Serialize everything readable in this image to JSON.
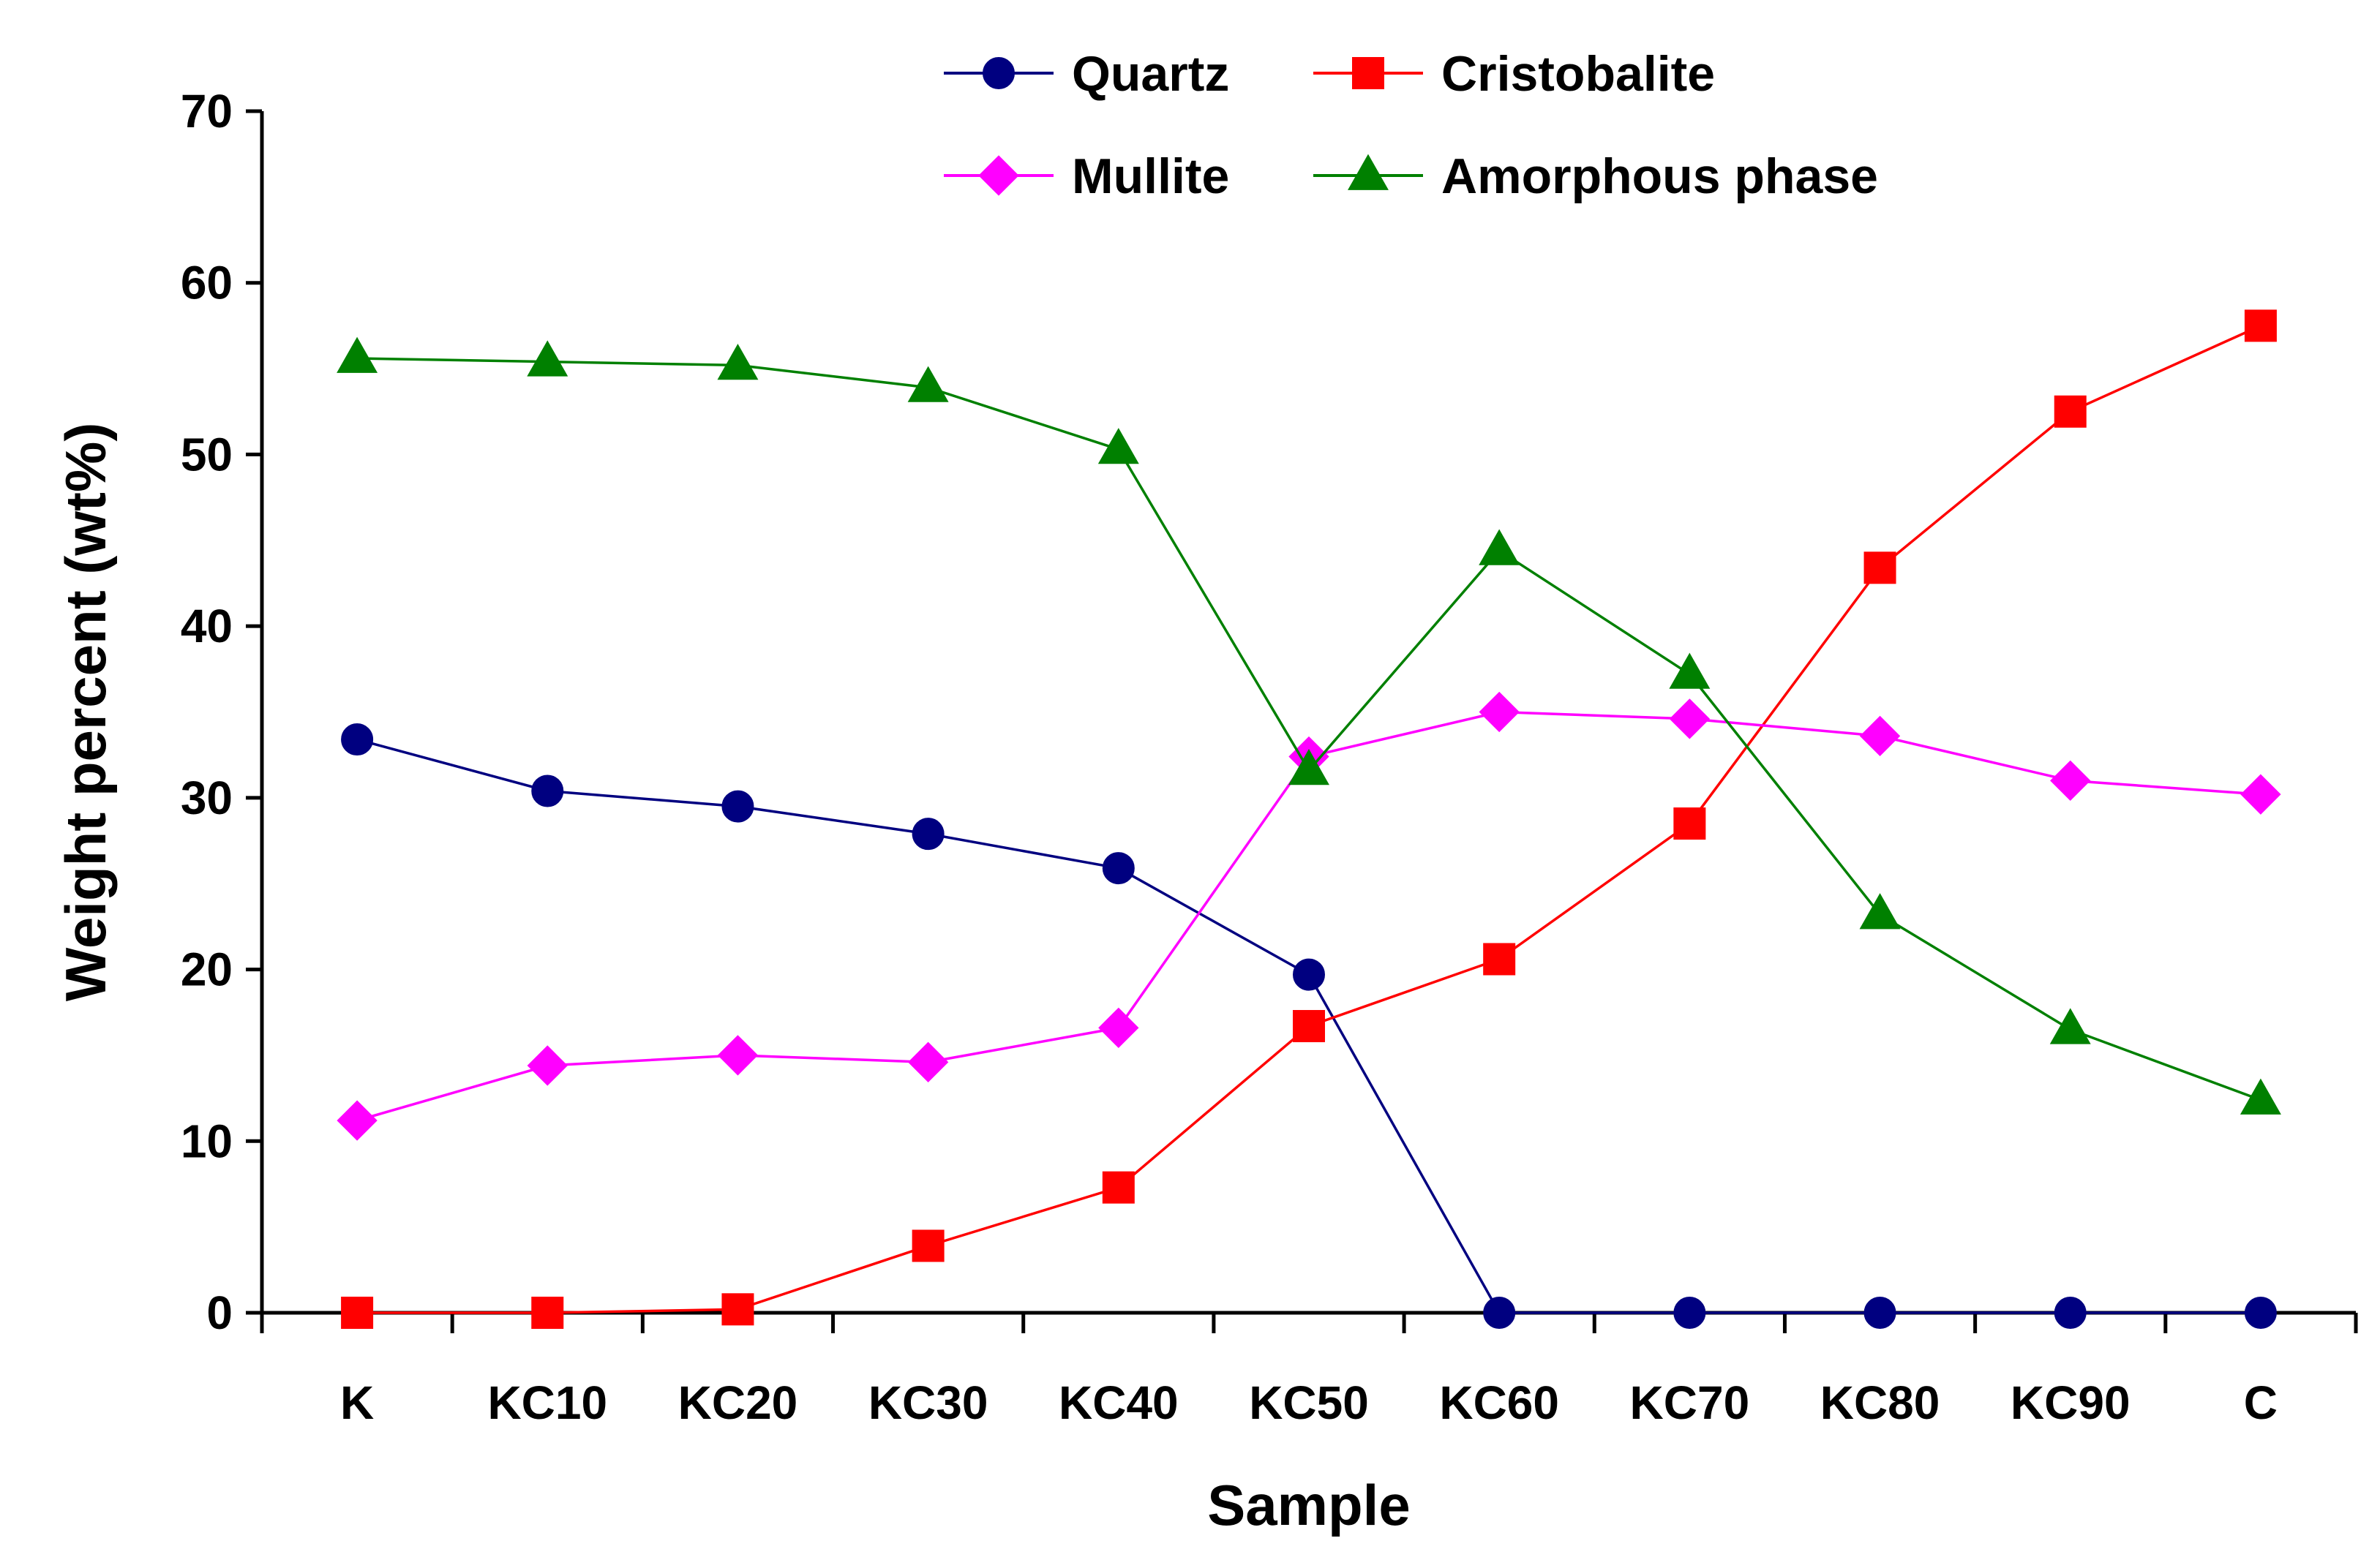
{
  "chart_data": {
    "type": "line",
    "title": "",
    "xlabel": "Sample",
    "ylabel": "Weight percent (wt%)",
    "ylim": [
      0,
      70
    ],
    "yticks": [
      0,
      10,
      20,
      30,
      40,
      50,
      60,
      70
    ],
    "grid": false,
    "legend_position": "top",
    "categories": [
      "K",
      "KC10",
      "KC20",
      "KC30",
      "KC40",
      "KC50",
      "KC60",
      "KC70",
      "KC80",
      "KC90",
      "C"
    ],
    "series": [
      {
        "name": "Quartz",
        "color": "#000080",
        "marker": "circle",
        "values": [
          33.4,
          30.4,
          29.5,
          27.9,
          25.9,
          19.7,
          0,
          0,
          0,
          0,
          0
        ]
      },
      {
        "name": "Cristobalite",
        "color": "#ff0000",
        "marker": "square",
        "values": [
          0,
          0,
          0.2,
          3.9,
          7.3,
          16.7,
          20.6,
          28.5,
          43.4,
          52.5,
          57.5
        ]
      },
      {
        "name": "Mullite",
        "color": "#ff00ff",
        "marker": "diamond",
        "values": [
          11.2,
          14.4,
          15.0,
          14.6,
          16.6,
          32.4,
          35.0,
          34.6,
          33.6,
          31.0,
          30.2
        ]
      },
      {
        "name": "Amorphous phase",
        "color": "#008000",
        "marker": "triangle",
        "values": [
          55.6,
          55.4,
          55.2,
          53.9,
          50.3,
          31.6,
          44.4,
          37.2,
          23.2,
          16.5,
          12.4
        ]
      }
    ]
  }
}
